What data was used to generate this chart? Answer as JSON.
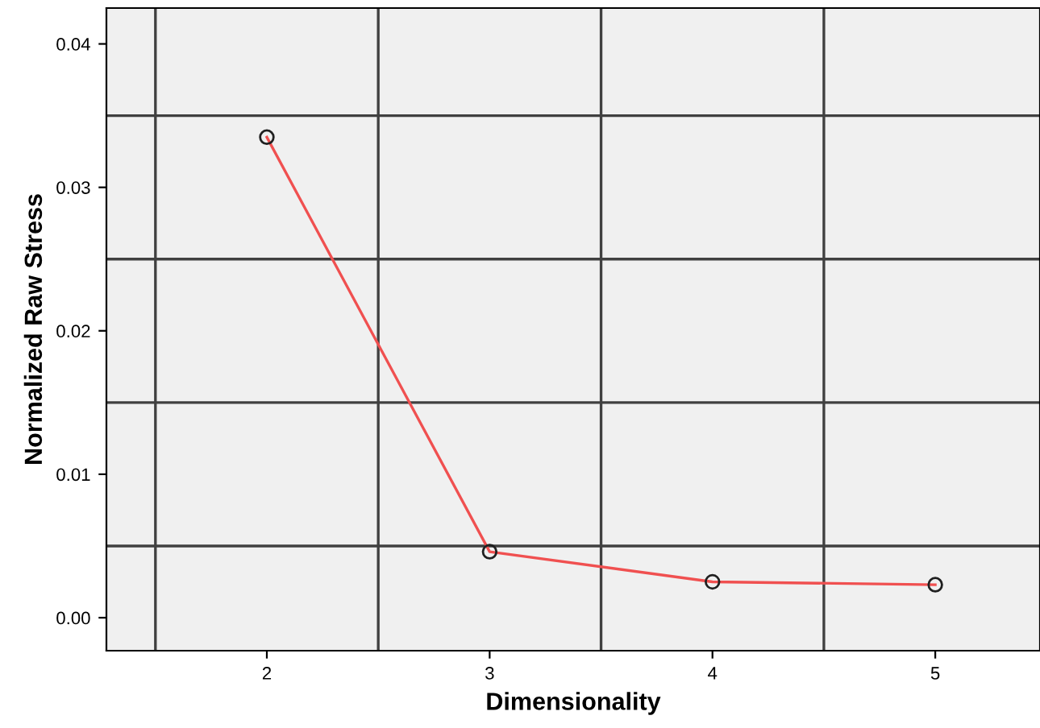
{
  "chart_data": {
    "type": "line",
    "xlabel": "Dimensionality",
    "ylabel": "Normalized Raw Stress",
    "x": [
      2,
      3,
      4,
      5
    ],
    "series": [
      {
        "color": "#f05050",
        "values": [
          0.0335,
          0.0046,
          0.0025,
          0.0023
        ]
      }
    ],
    "marker": "circle",
    "line_style": "solid",
    "grid": false,
    "legend": false,
    "xlim": [
      1.28,
      5.47
    ],
    "ylim": [
      -0.0023,
      0.0425
    ],
    "xticks": [
      2,
      3,
      4,
      5
    ],
    "yticks": [
      {
        "value": 0,
        "label": "0.00"
      },
      {
        "value": 0.01,
        "label": "0.01"
      },
      {
        "value": 0.02,
        "label": "0.02"
      },
      {
        "value": 0.03,
        "label": "0.03"
      },
      {
        "value": 0.04,
        "label": "0.04"
      }
    ],
    "ref_lines": [
      {
        "axis": "x",
        "value": 1.5,
        "color": "#404040"
      },
      {
        "axis": "x",
        "value": 2.5,
        "color": "#404040"
      },
      {
        "axis": "x",
        "value": 3.5,
        "color": "#404040"
      },
      {
        "axis": "x",
        "value": 4.5,
        "color": "#404040"
      },
      {
        "axis": "y",
        "value": 0.005,
        "color": "#404040"
      },
      {
        "axis": "y",
        "value": 0.015,
        "color": "#404040"
      },
      {
        "axis": "y",
        "value": 0.025,
        "color": "#404040"
      },
      {
        "axis": "y",
        "value": 0.035,
        "color": "#404040"
      }
    ]
  }
}
